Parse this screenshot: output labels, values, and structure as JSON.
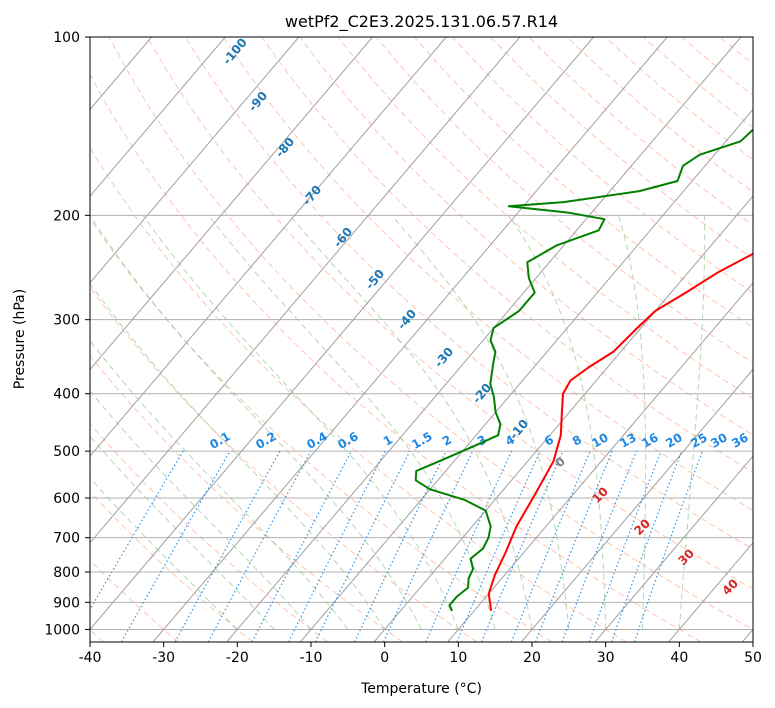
{
  "chart_data": {
    "type": "line",
    "subtype": "skew-t log-p diagram",
    "title": "wetPf2_C2E3.2025.131.06.57.R14",
    "xlabel": "Temperature (°C)",
    "ylabel": "Pressure (hPa)",
    "xlim": [
      -40,
      50
    ],
    "ylim": [
      1050,
      100
    ],
    "y_scale": "log",
    "grid": true,
    "x_ticks": [
      -40,
      -30,
      -20,
      -10,
      0,
      10,
      20,
      30,
      40,
      50
    ],
    "y_ticks": [
      100,
      200,
      300,
      400,
      500,
      600,
      700,
      800,
      900,
      1000
    ],
    "series": [
      {
        "key": "temperature",
        "color": "#ff0000",
        "points": [
          [
            12.3,
            930
          ],
          [
            10,
            870
          ],
          [
            8.7,
            810
          ],
          [
            7.5,
            740
          ],
          [
            6,
            670
          ],
          [
            4.8,
            590
          ],
          [
            3.5,
            520
          ],
          [
            1.5,
            470
          ],
          [
            -1,
            430
          ],
          [
            -3,
            400
          ],
          [
            -3.5,
            380
          ],
          [
            -2.5,
            360
          ],
          [
            -1,
            340
          ],
          [
            -0.5,
            310
          ],
          [
            0,
            290
          ],
          [
            2,
            270
          ],
          [
            4,
            250
          ],
          [
            7,
            230
          ],
          [
            10,
            210
          ],
          [
            12,
            185
          ],
          [
            14,
            165
          ],
          [
            17,
            145
          ],
          [
            21,
            130
          ],
          [
            25,
            118
          ],
          [
            29,
            108
          ],
          [
            32,
            100
          ]
        ]
      },
      {
        "key": "dewpoint",
        "color": "#008000",
        "points": [
          [
            7,
            930
          ],
          [
            6,
            910
          ],
          [
            6,
            880
          ],
          [
            6.5,
            850
          ],
          [
            5.5,
            820
          ],
          [
            5,
            790
          ],
          [
            3.5,
            760
          ],
          [
            4,
            730
          ],
          [
            3.5,
            700
          ],
          [
            2.5,
            670
          ],
          [
            0,
            630
          ],
          [
            -4,
            605
          ],
          [
            -10,
            580
          ],
          [
            -13,
            560
          ],
          [
            -14,
            540
          ],
          [
            -12,
            520
          ],
          [
            -9,
            490
          ],
          [
            -7,
            470
          ],
          [
            -8,
            450
          ],
          [
            -10,
            430
          ],
          [
            -12,
            405
          ],
          [
            -14,
            385
          ],
          [
            -16,
            355
          ],
          [
            -17,
            340
          ],
          [
            -19,
            325
          ],
          [
            -20,
            310
          ],
          [
            -18.5,
            290
          ],
          [
            -18.5,
            270
          ],
          [
            -21,
            255
          ],
          [
            -23,
            240
          ],
          [
            -21,
            225
          ],
          [
            -17,
            212
          ],
          [
            -17.5,
            203
          ],
          [
            -23,
            198
          ],
          [
            -32,
            193
          ],
          [
            -25,
            190
          ],
          [
            -16,
            182
          ],
          [
            -12,
            175
          ],
          [
            -13,
            165
          ],
          [
            -12,
            158
          ],
          [
            -8,
            150
          ],
          [
            -7.5,
            140
          ],
          [
            -6.5,
            130
          ],
          [
            -3,
            120
          ],
          [
            0,
            110
          ],
          [
            3,
            100
          ]
        ]
      }
    ],
    "dry_adiabats": {
      "color": "#ff9e7a",
      "style": "dashed"
    },
    "moist_adiabats": {
      "color": "#5aa35a",
      "style": "dashed",
      "labels": [
        "-100",
        "-90",
        "-80",
        "-70",
        "-60",
        "-50",
        "-40",
        "-30",
        "-20",
        "-10"
      ],
      "label_color": "#1f77b4"
    },
    "mixing_ratio_lines": {
      "color": "#1e88e5",
      "style": "dotted",
      "labels": [
        "0.1",
        "0.2",
        "0.4",
        "0.6",
        "1",
        "1.5",
        "2",
        "3",
        "4",
        "6",
        "8",
        "10",
        "13",
        "16",
        "20",
        "25",
        "30",
        "36"
      ]
    },
    "isotherm_labels": {
      "labels": [
        "0",
        "10",
        "20",
        "30",
        "40"
      ],
      "colors": [
        "#808080",
        "#d62728",
        "#d62728",
        "#d62728",
        "#d62728"
      ]
    }
  }
}
